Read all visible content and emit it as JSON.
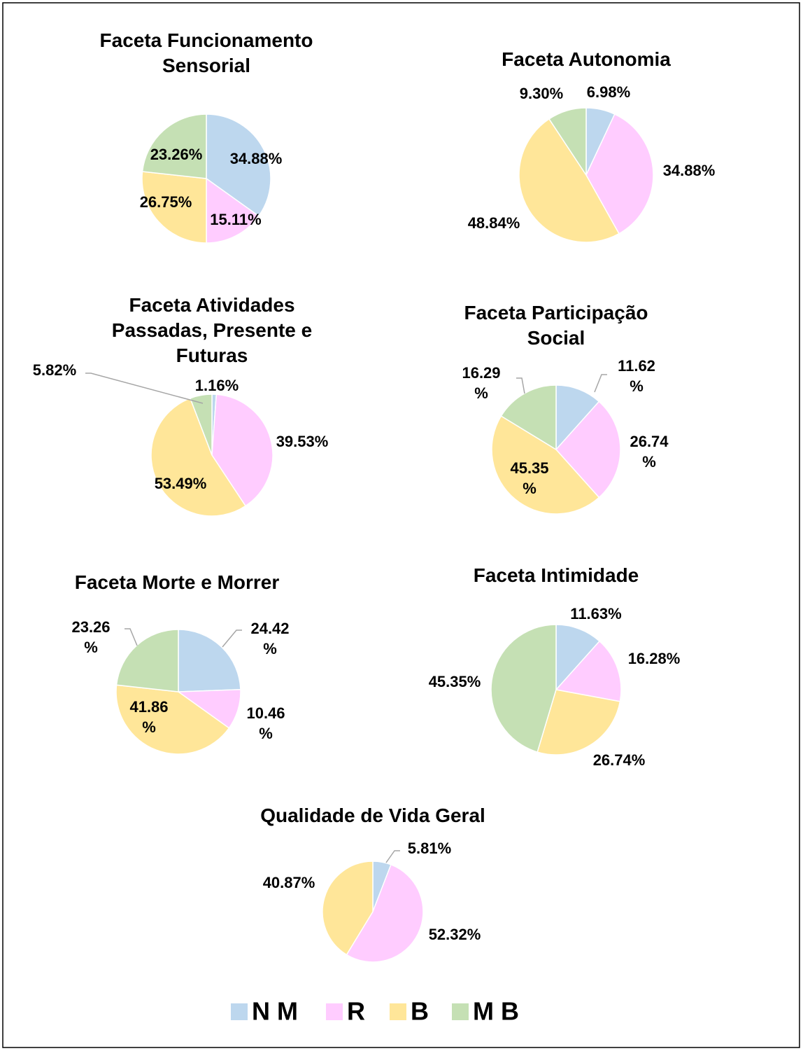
{
  "chart_data": [
    {
      "type": "pie",
      "title": "Faceta Funcionamento Sensorial",
      "values": [
        34.88,
        15.11,
        26.75,
        23.26
      ],
      "value_labels": [
        "34.88%",
        "15.11%",
        "26.75%",
        "23.26%"
      ]
    },
    {
      "type": "pie",
      "title": "Faceta Autonomia",
      "values": [
        6.98,
        34.88,
        48.84,
        9.3
      ],
      "value_labels": [
        "6.98%",
        "34.88%",
        "48.84%",
        "9.30%"
      ]
    },
    {
      "type": "pie",
      "title": "Faceta Atividades Passadas, Presente e Futuras",
      "values": [
        1.16,
        39.53,
        53.49,
        5.82
      ],
      "value_labels": [
        "1.16%",
        "39.53%",
        "53.49%",
        "5.82%"
      ]
    },
    {
      "type": "pie",
      "title": "Faceta Participação Social",
      "values": [
        11.62,
        26.74,
        45.35,
        16.29
      ],
      "value_labels": [
        "11.62%",
        "26.74%",
        "45.35%",
        "16.29%"
      ]
    },
    {
      "type": "pie",
      "title": "Faceta Morte e Morrer",
      "values": [
        24.42,
        10.46,
        41.86,
        23.26
      ],
      "value_labels": [
        "24.42%",
        "10.46%",
        "41.86%",
        "23.26%"
      ]
    },
    {
      "type": "pie",
      "title": "Faceta Intimidade",
      "values": [
        11.63,
        16.28,
        26.74,
        45.35
      ],
      "value_labels": [
        "11.63%",
        "16.28%",
        "26.74%",
        "45.35%"
      ]
    },
    {
      "type": "pie",
      "title": "Qualidade de Vida Geral",
      "values": [
        5.81,
        52.32,
        40.87,
        null
      ],
      "value_labels": [
        "5.81%",
        "52.32%",
        "40.87%",
        null
      ]
    }
  ],
  "legend": {
    "labels": [
      "N M",
      "R",
      "B",
      "M B"
    ],
    "colors": [
      "#bdd7ee",
      "#ffccff",
      "#ffe699",
      "#c5e0b4"
    ]
  }
}
